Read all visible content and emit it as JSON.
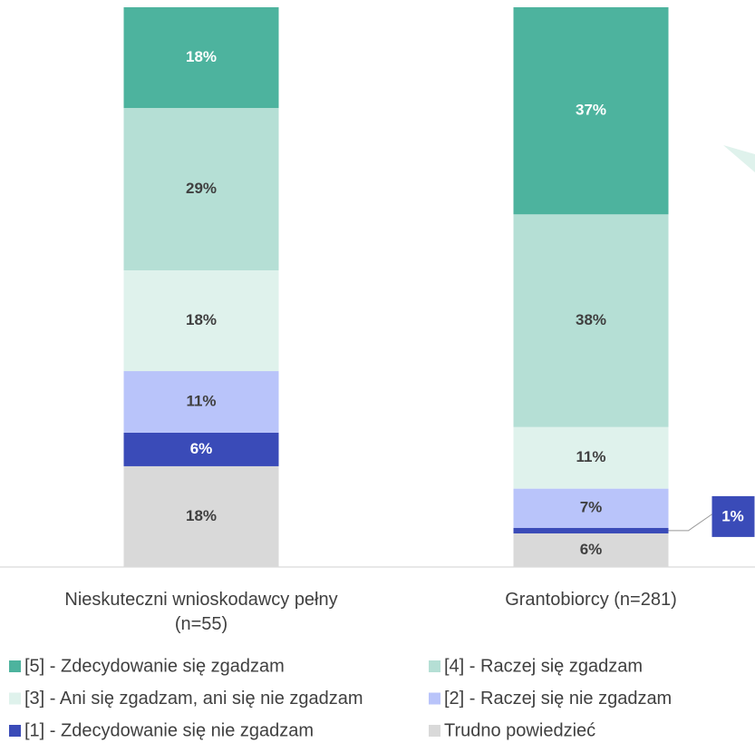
{
  "chart_data": {
    "type": "stacked_bar",
    "categories": [
      "Nieskuteczni wnioskodawcy pełny (n=55)",
      "Grantobiorcy (n=281)"
    ],
    "ylim": [
      0,
      100
    ],
    "series": [
      {
        "name": "Trudno powiedzieć",
        "color": "#d9d9d9",
        "values": [
          18,
          6
        ],
        "value_labels": [
          "18%",
          "6%"
        ]
      },
      {
        "name": "[1] - Zdecydowanie się nie zgadzam",
        "color": "#3a4bb8",
        "values": [
          6,
          1
        ],
        "value_labels": [
          "6%",
          "1%"
        ]
      },
      {
        "name": "[2] - Raczej się nie zgadzam",
        "color": "#b9c4fa",
        "values": [
          11,
          7
        ],
        "value_labels": [
          "11%",
          "7%"
        ]
      },
      {
        "name": "[3] - Ani się zgadzam, ani się nie zgadzam",
        "color": "#dff2ec",
        "values": [
          18,
          11
        ],
        "value_labels": [
          "18%",
          "11%"
        ]
      },
      {
        "name": "[4] - Raczej się zgadzam",
        "color": "#b5dfd5",
        "values": [
          29,
          38
        ],
        "value_labels": [
          "29%",
          "38%"
        ]
      },
      {
        "name": "[5] - Zdecydowanie się zgadzam",
        "color": "#4db39e",
        "values": [
          18,
          37
        ],
        "value_labels": [
          "18%",
          "37%"
        ]
      }
    ]
  }
}
